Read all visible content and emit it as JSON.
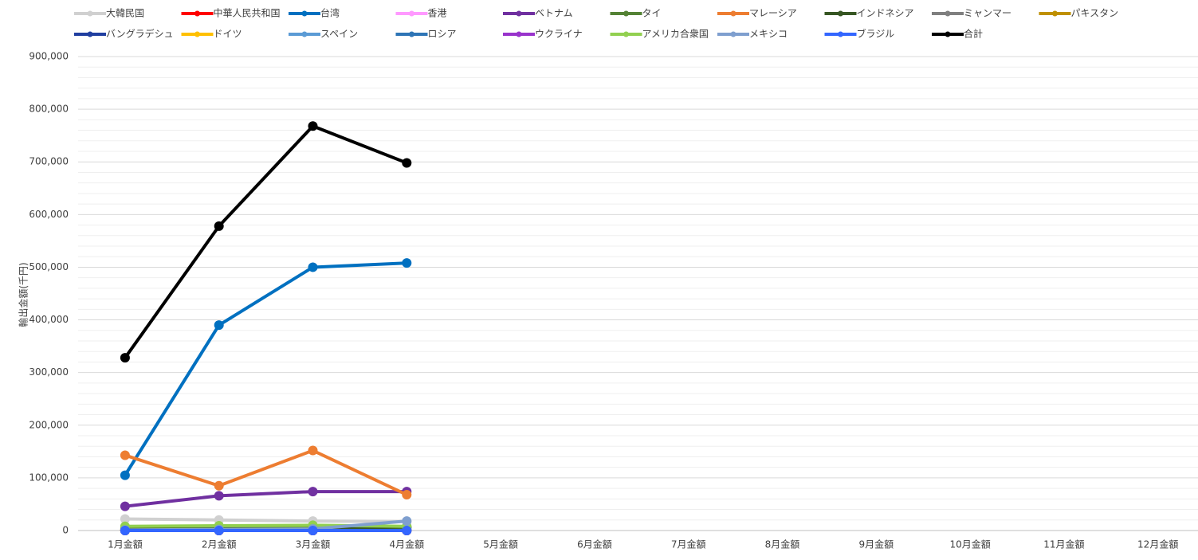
{
  "chart_data": {
    "type": "line",
    "y_label": "輸出金額(千円)",
    "categories": [
      "1月金額",
      "2月金額",
      "3月金額",
      "4月金額",
      "5月金額",
      "6月金額",
      "7月金額",
      "8月金額",
      "9月金額",
      "10月金額",
      "11月金額",
      "12月金額"
    ],
    "ylim": [
      0,
      900000
    ],
    "yticks": [
      0,
      {
        "value": 100000,
        "label": "100,000"
      },
      {
        "value": 200000,
        "label": "200,000"
      },
      {
        "value": 300000,
        "label": "300,000"
      },
      {
        "value": 400000,
        "label": "400,000"
      },
      {
        "value": 500000,
        "label": "500,000"
      },
      {
        "value": 600000,
        "label": "600,000"
      },
      {
        "value": 700000,
        "label": "700,000"
      },
      {
        "value": 800000,
        "label": "800,000"
      },
      {
        "value": 900000,
        "label": "900,000"
      }
    ],
    "grid": true,
    "minor_divisions": 5,
    "legend": "top",
    "series": [
      {
        "name": "大韓民国",
        "color": "#d0d0d0",
        "values": [
          22000,
          20000,
          18000,
          17000,
          null,
          null,
          null,
          null,
          null,
          null,
          null,
          null
        ]
      },
      {
        "name": "中華人民共和国",
        "color": "#ff0000",
        "values": [
          0,
          0,
          0,
          0,
          null,
          null,
          null,
          null,
          null,
          null,
          null,
          null
        ]
      },
      {
        "name": "台湾",
        "color": "#0070c0",
        "values": [
          105000,
          390000,
          500000,
          508000,
          null,
          null,
          null,
          null,
          null,
          null,
          null,
          null
        ]
      },
      {
        "name": "香港",
        "color": "#ff99ff",
        "values": [
          0,
          0,
          0,
          0,
          null,
          null,
          null,
          null,
          null,
          null,
          null,
          null
        ]
      },
      {
        "name": "ベトナム",
        "color": "#7030a0",
        "values": [
          46000,
          66000,
          74000,
          74000,
          null,
          null,
          null,
          null,
          null,
          null,
          null,
          null
        ]
      },
      {
        "name": "タイ",
        "color": "#548235",
        "values": [
          5000,
          7000,
          5000,
          5000,
          null,
          null,
          null,
          null,
          null,
          null,
          null,
          null
        ]
      },
      {
        "name": "マレーシア",
        "color": "#ed7d31",
        "values": [
          143000,
          85000,
          152000,
          68000,
          null,
          null,
          null,
          null,
          null,
          null,
          null,
          null
        ]
      },
      {
        "name": "インドネシア",
        "color": "#375623",
        "values": [
          2000,
          3000,
          3000,
          7000,
          null,
          null,
          null,
          null,
          null,
          null,
          null,
          null
        ]
      },
      {
        "name": "ミャンマー",
        "color": "#7f7f7f",
        "values": [
          0,
          0,
          0,
          0,
          null,
          null,
          null,
          null,
          null,
          null,
          null,
          null
        ]
      },
      {
        "name": "パキスタン",
        "color": "#bf9000",
        "values": [
          0,
          0,
          0,
          0,
          null,
          null,
          null,
          null,
          null,
          null,
          null,
          null
        ]
      },
      {
        "name": "バングラデシュ",
        "color": "#203fa0",
        "values": [
          0,
          0,
          0,
          0,
          null,
          null,
          null,
          null,
          null,
          null,
          null,
          null
        ]
      },
      {
        "name": "ドイツ",
        "color": "#ffc000",
        "values": [
          0,
          0,
          0,
          0,
          null,
          null,
          null,
          null,
          null,
          null,
          null,
          null
        ]
      },
      {
        "name": "スペイン",
        "color": "#5b9bd5",
        "values": [
          0,
          0,
          0,
          0,
          null,
          null,
          null,
          null,
          null,
          null,
          null,
          null
        ]
      },
      {
        "name": "ロシア",
        "color": "#2e75b6",
        "values": [
          0,
          0,
          0,
          0,
          null,
          null,
          null,
          null,
          null,
          null,
          null,
          null
        ]
      },
      {
        "name": "ウクライナ",
        "color": "#9933cc",
        "values": [
          0,
          0,
          0,
          0,
          null,
          null,
          null,
          null,
          null,
          null,
          null,
          null
        ]
      },
      {
        "name": "アメリカ合衆国",
        "color": "#92d050",
        "values": [
          8000,
          9000,
          10000,
          8000,
          null,
          null,
          null,
          null,
          null,
          null,
          null,
          null
        ]
      },
      {
        "name": "メキシコ",
        "color": "#7f9fcf",
        "values": [
          1000,
          2000,
          3000,
          18000,
          null,
          null,
          null,
          null,
          null,
          null,
          null,
          null
        ]
      },
      {
        "name": "ブラジル",
        "color": "#3366ff",
        "values": [
          0,
          0,
          0,
          0,
          null,
          null,
          null,
          null,
          null,
          null,
          null,
          null
        ]
      },
      {
        "name": "合計",
        "color": "#000000",
        "values": [
          328000,
          578000,
          768000,
          698000,
          null,
          null,
          null,
          null,
          null,
          null,
          null,
          null
        ]
      }
    ]
  }
}
